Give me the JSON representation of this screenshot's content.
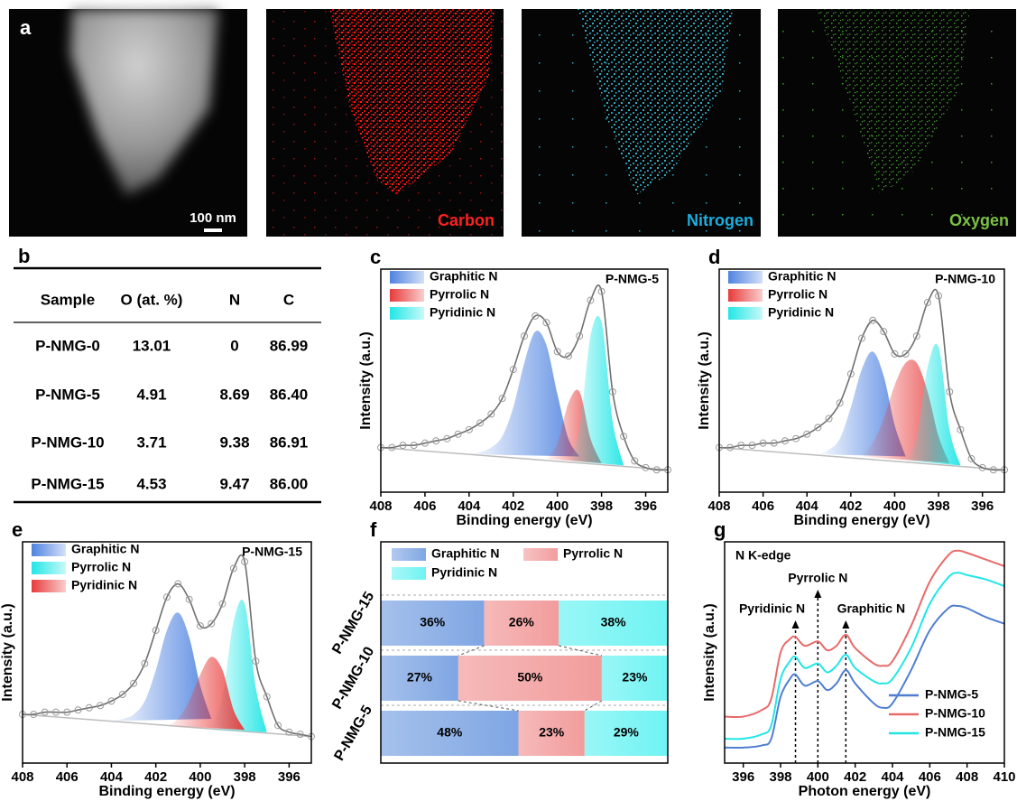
{
  "panel_a": {
    "label": "a",
    "scale_bar": "100 nm",
    "maps": [
      "Carbon",
      "Nitrogen",
      "Oxygen"
    ]
  },
  "table": {
    "label": "b",
    "header": [
      "Sample",
      "O (at. %)",
      "N",
      "C"
    ],
    "rows": [
      [
        "P-NMG-0",
        "13.01",
        "0",
        "86.99"
      ],
      [
        "P-NMG-5",
        "4.91",
        "8.69",
        "86.40"
      ],
      [
        "P-NMG-10",
        "3.71",
        "9.38",
        "86.91"
      ],
      [
        "P-NMG-15",
        "4.53",
        "9.47",
        "86.00"
      ]
    ]
  },
  "chart_data": [
    {
      "type": "area",
      "label": "c",
      "sample": "P-NMG-5",
      "xlabel": "Binding energy (eV)",
      "ylabel": "Intensity (a.u.)",
      "xlim": [
        408,
        395
      ],
      "ylim": [
        0,
        100
      ],
      "xticks": [
        408,
        406,
        404,
        402,
        400,
        398,
        396
      ],
      "background": {
        "x": [
          408,
          395
        ],
        "values": [
          20,
          10
        ]
      },
      "fit": {
        "x": [
          408,
          407.5,
          407,
          406.5,
          406,
          405.5,
          405,
          404.5,
          404,
          403.5,
          403,
          402.5,
          402,
          401.5,
          401,
          400.5,
          400,
          399.5,
          399,
          398.5,
          398,
          397.5,
          397,
          396.5,
          396,
          395.5,
          395
        ],
        "values": [
          20,
          20,
          21,
          21,
          22,
          23,
          24,
          26,
          28,
          31,
          35,
          42,
          55,
          70,
          79,
          76,
          63,
          61,
          70,
          86,
          90,
          45,
          25,
          14,
          11,
          10,
          10
        ]
      },
      "series": [
        {
          "name": "Graphitic N",
          "color": "#4f83e0",
          "x": [
            404,
            403.5,
            403,
            402.5,
            402,
            401.5,
            401,
            400.5,
            400,
            399.5,
            399
          ],
          "values": [
            17,
            18,
            20,
            25,
            38,
            58,
            72,
            66,
            44,
            24,
            16
          ]
        },
        {
          "name": "Pyrrolic N",
          "color": "#e83a3a",
          "x": [
            400.5,
            400,
            399.5,
            399,
            398.5,
            398
          ],
          "values": [
            15,
            22,
            40,
            45,
            24,
            13
          ]
        },
        {
          "name": "Pyridinic N",
          "color": "#22e6e6",
          "x": [
            399.5,
            399,
            398.5,
            398,
            397.5,
            397
          ],
          "values": [
            14,
            28,
            70,
            76,
            32,
            12
          ]
        }
      ]
    },
    {
      "type": "area",
      "label": "d",
      "sample": "P-NMG-10",
      "xlabel": "Binding energy (eV)",
      "ylabel": "Intensity (a.u.)",
      "xlim": [
        408,
        395
      ],
      "ylim": [
        0,
        100
      ],
      "xticks": [
        408,
        406,
        404,
        402,
        400,
        398,
        396
      ],
      "background": {
        "x": [
          408,
          395
        ],
        "values": [
          20,
          10
        ]
      },
      "fit": {
        "x": [
          408,
          407.5,
          407,
          406.5,
          406,
          405.5,
          405,
          404.5,
          404,
          403.5,
          403,
          402.5,
          402,
          401.5,
          401,
          400.5,
          400,
          399.5,
          399,
          398.5,
          398,
          397.5,
          397,
          396.5,
          396,
          395.5,
          395
        ],
        "values": [
          20,
          20,
          21,
          21,
          22,
          22,
          23,
          24,
          26,
          29,
          33,
          40,
          53,
          69,
          77,
          72,
          62,
          62,
          70,
          85,
          88,
          45,
          28,
          15,
          11,
          10,
          10
        ]
      },
      "series": [
        {
          "name": "Graphitic N",
          "color": "#4f83e0",
          "x": [
            403.5,
            403,
            402.5,
            402,
            401.5,
            401,
            400.5,
            400,
            399.5
          ],
          "values": [
            17,
            19,
            24,
            38,
            55,
            63,
            52,
            30,
            16
          ]
        },
        {
          "name": "Pyrrolic N",
          "color": "#e83a3a",
          "x": [
            401.5,
            401,
            400.5,
            400,
            399.5,
            399,
            398.5,
            398,
            397.5
          ],
          "values": [
            16,
            22,
            33,
            48,
            58,
            58,
            45,
            25,
            13
          ]
        },
        {
          "name": "Pyridinic N",
          "color": "#22e6e6",
          "x": [
            399.5,
            399,
            398.5,
            398,
            397.5,
            397
          ],
          "values": [
            14,
            24,
            56,
            65,
            28,
            12
          ]
        }
      ]
    },
    {
      "type": "area",
      "label": "e",
      "sample": "P-NMG-15",
      "xlabel": "Binding energy (eV)",
      "ylabel": "Intensity (a.u.)",
      "xlim": [
        408,
        395
      ],
      "ylim": [
        0,
        100
      ],
      "xticks": [
        408,
        406,
        404,
        402,
        400,
        398,
        396
      ],
      "background": {
        "x": [
          408,
          395
        ],
        "values": [
          22,
          12
        ]
      },
      "fit": {
        "x": [
          408,
          407.5,
          407,
          406.5,
          406,
          405.5,
          405,
          404.5,
          404,
          403.5,
          403,
          402.5,
          402,
          401.5,
          401,
          400.5,
          400,
          399.5,
          399,
          398.5,
          398,
          397.5,
          397,
          396.5,
          396,
          395.5,
          395
        ],
        "values": [
          22,
          22,
          23,
          23,
          23,
          24,
          25,
          26,
          28,
          31,
          36,
          45,
          60,
          75,
          81,
          74,
          62,
          63,
          72,
          88,
          91,
          46,
          30,
          17,
          14,
          13,
          12
        ]
      },
      "series": [
        {
          "name": "Graphitic N",
          "color": "#4f83e0",
          "x": [
            404,
            403.5,
            403,
            402.5,
            402,
            401.5,
            401,
            400.5,
            400,
            399.5
          ],
          "values": [
            19,
            20,
            22,
            28,
            42,
            60,
            68,
            57,
            35,
            20
          ]
        },
        {
          "name": "Pyrrolic N",
          "color": "#22e6e6",
          "x": [
            399.5,
            399,
            398.5,
            398,
            397.5,
            397
          ],
          "values": [
            15,
            30,
            64,
            72,
            34,
            14
          ]
        },
        {
          "name": "Pyridinic N",
          "color": "#e83a3a",
          "x": [
            401.5,
            401,
            400.5,
            400,
            399.5,
            399,
            398.5,
            398
          ],
          "values": [
            17,
            20,
            28,
            40,
            48,
            42,
            24,
            15
          ]
        }
      ]
    },
    {
      "type": "bar",
      "label": "f",
      "orientation": "horizontal",
      "stacked": true,
      "categories": [
        "P-NMG-15",
        "P-NMG-10",
        "P-NMG-5"
      ],
      "xlim": [
        0,
        100
      ],
      "series": [
        {
          "name": "Graphitic N",
          "color": "#7fa6e3",
          "values": [
            36,
            27,
            48
          ],
          "value_labels": [
            "36%",
            "27%",
            "48%"
          ]
        },
        {
          "name": "Pyrrolic N",
          "color": "#f29c9c",
          "values": [
            26,
            50,
            23
          ],
          "value_labels": [
            "26%",
            "50%",
            "23%"
          ]
        },
        {
          "name": "Pyridinic N",
          "color": "#6ff3f3",
          "values": [
            38,
            23,
            29
          ],
          "value_labels": [
            "38%",
            "23%",
            "29%"
          ]
        }
      ]
    },
    {
      "type": "line",
      "label": "g",
      "title": "N K-edge",
      "xlabel": "Photon energy (eV)",
      "ylabel": "Intensity (a.u.)",
      "xlim": [
        395,
        410
      ],
      "ylim": [
        0,
        100
      ],
      "xticks": [
        396,
        398,
        400,
        402,
        404,
        406,
        408,
        410
      ],
      "x": [
        395,
        396,
        397,
        397.5,
        398,
        398.5,
        398.8,
        399.3,
        400,
        400.5,
        401,
        401.5,
        402,
        403,
        403.5,
        404,
        405,
        406,
        407,
        407.5,
        408,
        409,
        410
      ],
      "series": [
        {
          "name": "P-NMG-5",
          "color": "#4f7fd0",
          "values": [
            7,
            7,
            8,
            11,
            30,
            38,
            40,
            35,
            37,
            33,
            36,
            42,
            36,
            27,
            25,
            27,
            42,
            60,
            70,
            71,
            70,
            66,
            63
          ]
        },
        {
          "name": "P-NMG-10",
          "color": "#e86a6a",
          "values": [
            21,
            21,
            24,
            29,
            50,
            56,
            57,
            53,
            55,
            51,
            53,
            58,
            52,
            45,
            44,
            46,
            62,
            82,
            94,
            96,
            95,
            92,
            89
          ]
        },
        {
          "name": "P-NMG-15",
          "color": "#22e6e6",
          "values": [
            11,
            11,
            13,
            17,
            38,
            46,
            48,
            43,
            45,
            41,
            44,
            49,
            43,
            37,
            36,
            38,
            52,
            72,
            84,
            86,
            85,
            83,
            80
          ]
        }
      ],
      "annotations": [
        {
          "text": "Pyridinic N",
          "x": 398.8
        },
        {
          "text": "Pyrrolic N",
          "x": 400
        },
        {
          "text": "Graphitic N",
          "x": 401.5
        }
      ]
    }
  ]
}
